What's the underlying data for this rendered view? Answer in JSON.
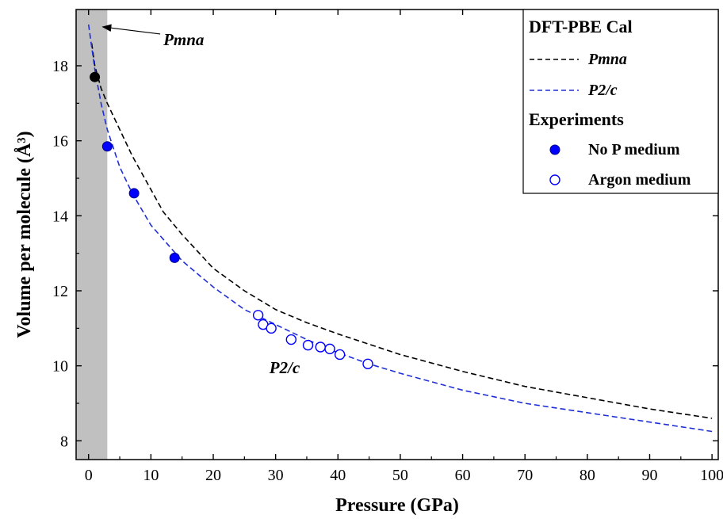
{
  "chart_data": {
    "type": "line",
    "xlabel": "Pressure (GPa)",
    "ylabel": "Volume per molecule (Å³)",
    "xlim": [
      -2,
      101
    ],
    "ylim": [
      7.5,
      19.5
    ],
    "xticks": [
      0,
      10,
      20,
      30,
      40,
      50,
      60,
      70,
      80,
      90,
      100
    ],
    "yticks": [
      8,
      10,
      12,
      14,
      16,
      18
    ],
    "grid": false,
    "legend_position": "top-right",
    "shaded_region": {
      "x_range": [
        -2,
        3
      ],
      "color": "#c0c0c0"
    },
    "legend": {
      "group1": "DFT-PBE Cal",
      "group2": "Experiments"
    },
    "series": [
      {
        "name": "Pmna",
        "style": "dashed",
        "color": "#000000",
        "x": [
          0.5,
          1,
          2,
          3,
          5,
          7,
          10,
          12,
          15,
          20,
          25,
          30,
          35,
          40,
          50,
          60,
          70,
          80,
          90,
          100
        ],
        "y": [
          18.6,
          18.0,
          17.4,
          17.0,
          16.3,
          15.6,
          14.7,
          14.1,
          13.5,
          12.6,
          12.0,
          11.5,
          11.15,
          10.85,
          10.3,
          9.85,
          9.45,
          9.15,
          8.85,
          8.6
        ]
      },
      {
        "name": "P2/c",
        "style": "dashed",
        "color": "#1f2fd6",
        "x": [
          0,
          1,
          2,
          3,
          5,
          7,
          10,
          15,
          20,
          25,
          30,
          35,
          40,
          45,
          50,
          60,
          70,
          80,
          90,
          100
        ],
        "y": [
          19.1,
          17.9,
          17.0,
          16.3,
          15.3,
          14.6,
          13.75,
          12.8,
          12.1,
          11.5,
          11.1,
          10.7,
          10.35,
          10.05,
          9.8,
          9.35,
          9.0,
          8.75,
          8.5,
          8.25
        ]
      },
      {
        "name": "No P medium",
        "style": "filled-circle",
        "color": "#0000ff",
        "x": [
          3,
          7.3,
          13.8
        ],
        "y": [
          15.85,
          14.6,
          12.88
        ]
      },
      {
        "name": "Argon medium",
        "style": "open-circle",
        "color": "#0000ff",
        "x": [
          27.2,
          28,
          29.3,
          32.5,
          35.2,
          37.2,
          38.7,
          40.3,
          44.8
        ],
        "y": [
          11.35,
          11.1,
          11.0,
          10.7,
          10.55,
          10.5,
          10.45,
          10.3,
          10.05
        ]
      },
      {
        "style": "filled-circle",
        "color": "#000000",
        "x": [
          1
        ],
        "y": [
          17.7
        ]
      }
    ],
    "annotations": [
      {
        "text": "Pmna",
        "x": 12,
        "y": 18.55,
        "arrow_to_x": 1,
        "arrow_to_y": 19.1
      },
      {
        "text": "P2/c",
        "x": 29,
        "y": 9.8
      }
    ]
  }
}
